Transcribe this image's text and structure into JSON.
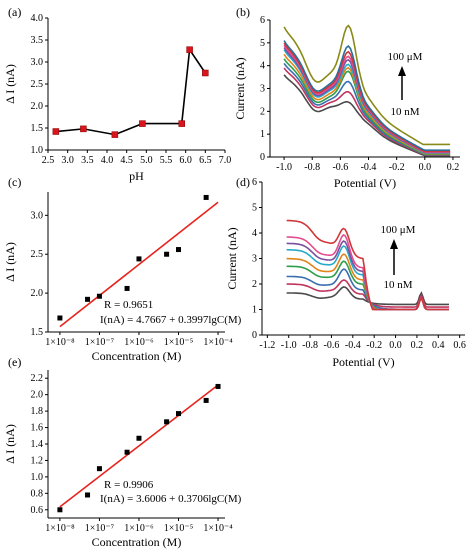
{
  "colors": {
    "axis": "#000000",
    "marker_red": "#d9141c",
    "fit_line": "#e8231c",
    "black": "#000000",
    "curves": [
      "#4a4a4a",
      "#c0365e",
      "#3a6fb0",
      "#2e9e4b",
      "#e0851c",
      "#28a9c9",
      "#7a4fa0",
      "#e24e90",
      "#d0373a",
      "#2b6f9a",
      "#8a8a1a"
    ]
  },
  "chart_data": [
    {
      "panel": "(a)",
      "type": "line",
      "xlabel": "pH",
      "ylabel": "Δ I (nA)",
      "xlim": [
        2.5,
        7.0
      ],
      "ylim": [
        1.0,
        4.0
      ],
      "xticks": [
        "2.5",
        "3.0",
        "3.5",
        "4.0",
        "4.5",
        "5.0",
        "5.5",
        "6.0",
        "6.5",
        "7.0"
      ],
      "yticks": [
        "1.0",
        "1.5",
        "2.0",
        "2.5",
        "3.0",
        "3.5",
        "4.0"
      ],
      "x": [
        2.7,
        3.4,
        4.2,
        4.9,
        5.9,
        6.1,
        6.5
      ],
      "y": [
        1.42,
        1.48,
        1.35,
        1.6,
        1.6,
        3.28,
        2.75
      ]
    },
    {
      "panel": "(b)",
      "type": "line",
      "xlabel": "Potential (V)",
      "ylabel": "Current (nA)",
      "xlim": [
        -1.1,
        0.25
      ],
      "ylim": [
        0,
        6
      ],
      "xticks": [
        "-1.0",
        "-0.8",
        "-0.6",
        "-0.4",
        "-0.2",
        "0.0",
        "0.2"
      ],
      "yticks": [
        "0",
        "1",
        "2",
        "3",
        "4",
        "5",
        "6"
      ],
      "annotation_top": "100 μM",
      "annotation_bottom": "10 nM",
      "peak_position": -0.54,
      "peak_heights": [
        2.4,
        2.85,
        3.3,
        3.75,
        3.9,
        4.05,
        4.25,
        4.4,
        4.6,
        4.85,
        5.75
      ],
      "start_values": [
        3.6,
        3.9,
        4.1,
        4.3,
        4.5,
        4.7,
        4.8,
        4.9,
        5.0,
        5.1,
        5.7
      ],
      "end_values": [
        0.05,
        0.08,
        0.1,
        0.12,
        0.15,
        0.18,
        0.2,
        0.22,
        0.25,
        0.3,
        0.55
      ]
    },
    {
      "panel": "(c)",
      "type": "scatter",
      "xlabel": "Concentration (M)",
      "ylabel": "Δ I (nA)",
      "x_scale": "log",
      "xlim": [
        5e-09,
        0.00015
      ],
      "ylim": [
        1.5,
        3.3
      ],
      "xticks": [
        "1×10⁻⁸",
        "1×10⁻⁷",
        "1×10⁻⁶",
        "1×10⁻⁵",
        "1×10⁻⁴"
      ],
      "yticks": [
        "1.5",
        "2.0",
        "2.5",
        "3.0"
      ],
      "x": [
        1e-08,
        5e-08,
        1e-07,
        5e-07,
        1e-06,
        5e-06,
        1e-05,
        5e-05
      ],
      "y": [
        1.68,
        1.92,
        1.96,
        2.06,
        2.44,
        2.5,
        2.56,
        3.23
      ],
      "fit_intercept": 4.7667,
      "fit_slope": 0.3997,
      "r_text": "R = 0.9651",
      "eq_text": "I(nA) = 4.7667 + 0.3997lgC(M)"
    },
    {
      "panel": "(d)",
      "type": "line",
      "xlabel": "Potential (V)",
      "ylabel": "Current (nA)",
      "xlim": [
        -1.25,
        0.65
      ],
      "ylim": [
        0,
        6
      ],
      "xticks": [
        "-1.2",
        "-1.0",
        "-0.8",
        "-0.6",
        "-0.4",
        "-0.2",
        "0.0",
        "0.2",
        "0.4",
        "0.6"
      ],
      "yticks": [
        "0",
        "1",
        "2",
        "3",
        "4",
        "5",
        "6"
      ],
      "annotation_top": "100 μM",
      "annotation_bottom": "10 nM",
      "peak_position": -0.48,
      "small_peak_position": 0.24,
      "peak_heights": [
        1.85,
        2.2,
        2.7,
        3.1,
        3.45,
        3.85,
        4.1,
        4.4,
        4.8
      ],
      "start_values": [
        1.65,
        2.0,
        2.3,
        2.7,
        3.0,
        3.35,
        3.6,
        3.85,
        4.5
      ]
    },
    {
      "panel": "(e)",
      "type": "scatter",
      "xlabel": "Concentration (M)",
      "ylabel": "Δ I (nA)",
      "x_scale": "log",
      "xlim": [
        5e-09,
        0.00015
      ],
      "ylim": [
        0.5,
        2.3
      ],
      "xticks": [
        "1×10⁻⁸",
        "1×10⁻⁷",
        "1×10⁻⁶",
        "1×10⁻⁵",
        "1×10⁻⁴"
      ],
      "yticks": [
        "0.6",
        "0.8",
        "1.0",
        "1.2",
        "1.4",
        "1.6",
        "1.8",
        "2.0",
        "2.2"
      ],
      "x": [
        1e-08,
        5e-08,
        1e-07,
        5e-07,
        1e-06,
        5e-06,
        1e-05,
        5e-05,
        0.0001
      ],
      "y": [
        0.6,
        0.78,
        1.1,
        1.3,
        1.47,
        1.67,
        1.77,
        1.93,
        2.1
      ],
      "fit_intercept": 3.6006,
      "fit_slope": 0.3706,
      "r_text": "R = 0.9906",
      "eq_text": "I(nA) = 3.6006 + 0.3706lgC(M)"
    }
  ]
}
